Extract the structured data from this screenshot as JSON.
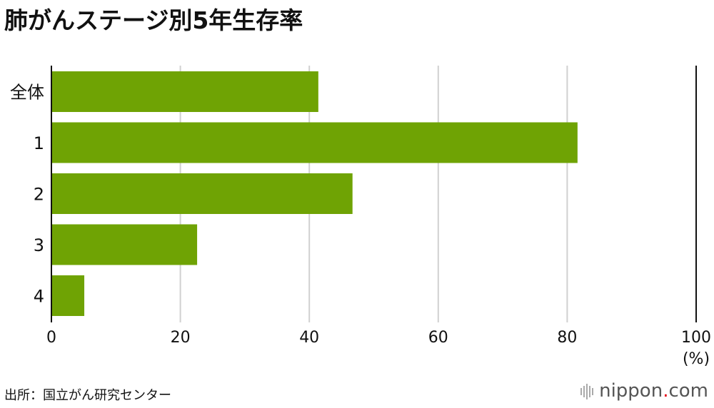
{
  "title": "肺がんステージ別5年生存率",
  "source": "出所：国立がん研究センター",
  "logo": {
    "main": "nippon",
    "dot": ".",
    "suffix": "com"
  },
  "colors": {
    "bar": "#6fa304",
    "grid": "#d0d0d0",
    "axis": "#111111"
  },
  "chart_data": {
    "type": "bar",
    "orientation": "horizontal",
    "title": "肺がんステージ別5年生存率",
    "categories": [
      "全体",
      "1",
      "2",
      "3",
      "4"
    ],
    "values": [
      41.4,
      81.6,
      46.7,
      22.6,
      5.1
    ],
    "xlim": [
      0,
      100
    ],
    "xticks": [
      0,
      20,
      40,
      60,
      80,
      100
    ],
    "xunit": "(%)",
    "grid": true
  }
}
